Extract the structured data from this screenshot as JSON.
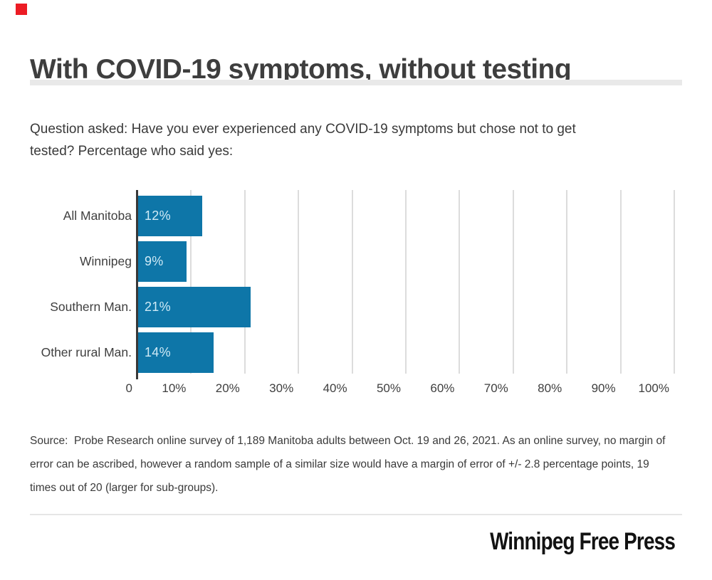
{
  "brand": {
    "accent_color": "#ec1c24",
    "bar_color": "#0e76a8",
    "bar_label_color": "#cfeaf6"
  },
  "header": {
    "title": "With COVID-19 symptoms, without testing"
  },
  "question": "Question asked: Have you ever experienced any COVID-19 symptoms but chose not to get\ntested? Percentage who said yes:",
  "chart_data": {
    "type": "bar",
    "orientation": "horizontal",
    "title": "",
    "xlabel": "",
    "ylabel": "",
    "xlim": [
      0,
      100
    ],
    "grid": true,
    "categories": [
      "All Manitoba",
      "Winnipeg",
      "Southern Man.",
      "Other rural Man."
    ],
    "values": [
      12,
      9,
      21,
      14
    ],
    "value_labels": [
      "12%",
      "9%",
      "21%",
      "14%"
    ],
    "x_ticks": [
      {
        "value": 0,
        "label": "0"
      },
      {
        "value": 10,
        "label": "10%"
      },
      {
        "value": 20,
        "label": "20%"
      },
      {
        "value": 30,
        "label": "30%"
      },
      {
        "value": 40,
        "label": "40%"
      },
      {
        "value": 50,
        "label": "50%"
      },
      {
        "value": 60,
        "label": "60%"
      },
      {
        "value": 70,
        "label": "70%"
      },
      {
        "value": 80,
        "label": "80%"
      },
      {
        "value": 90,
        "label": "90%"
      },
      {
        "value": 100,
        "label": "100%"
      }
    ]
  },
  "source": "Source:  Probe Research online survey of 1,189 Manitoba adults between Oct. 19 and 26, 2021. As an online survey, no margin of\nerror can be ascribed, however a random sample of a similar size would have a margin of error of +/- 2.8 percentage points, 19\ntimes out of 20 (larger for sub-groups).",
  "footer": {
    "logo_text": "Winnipeg Free Press"
  }
}
